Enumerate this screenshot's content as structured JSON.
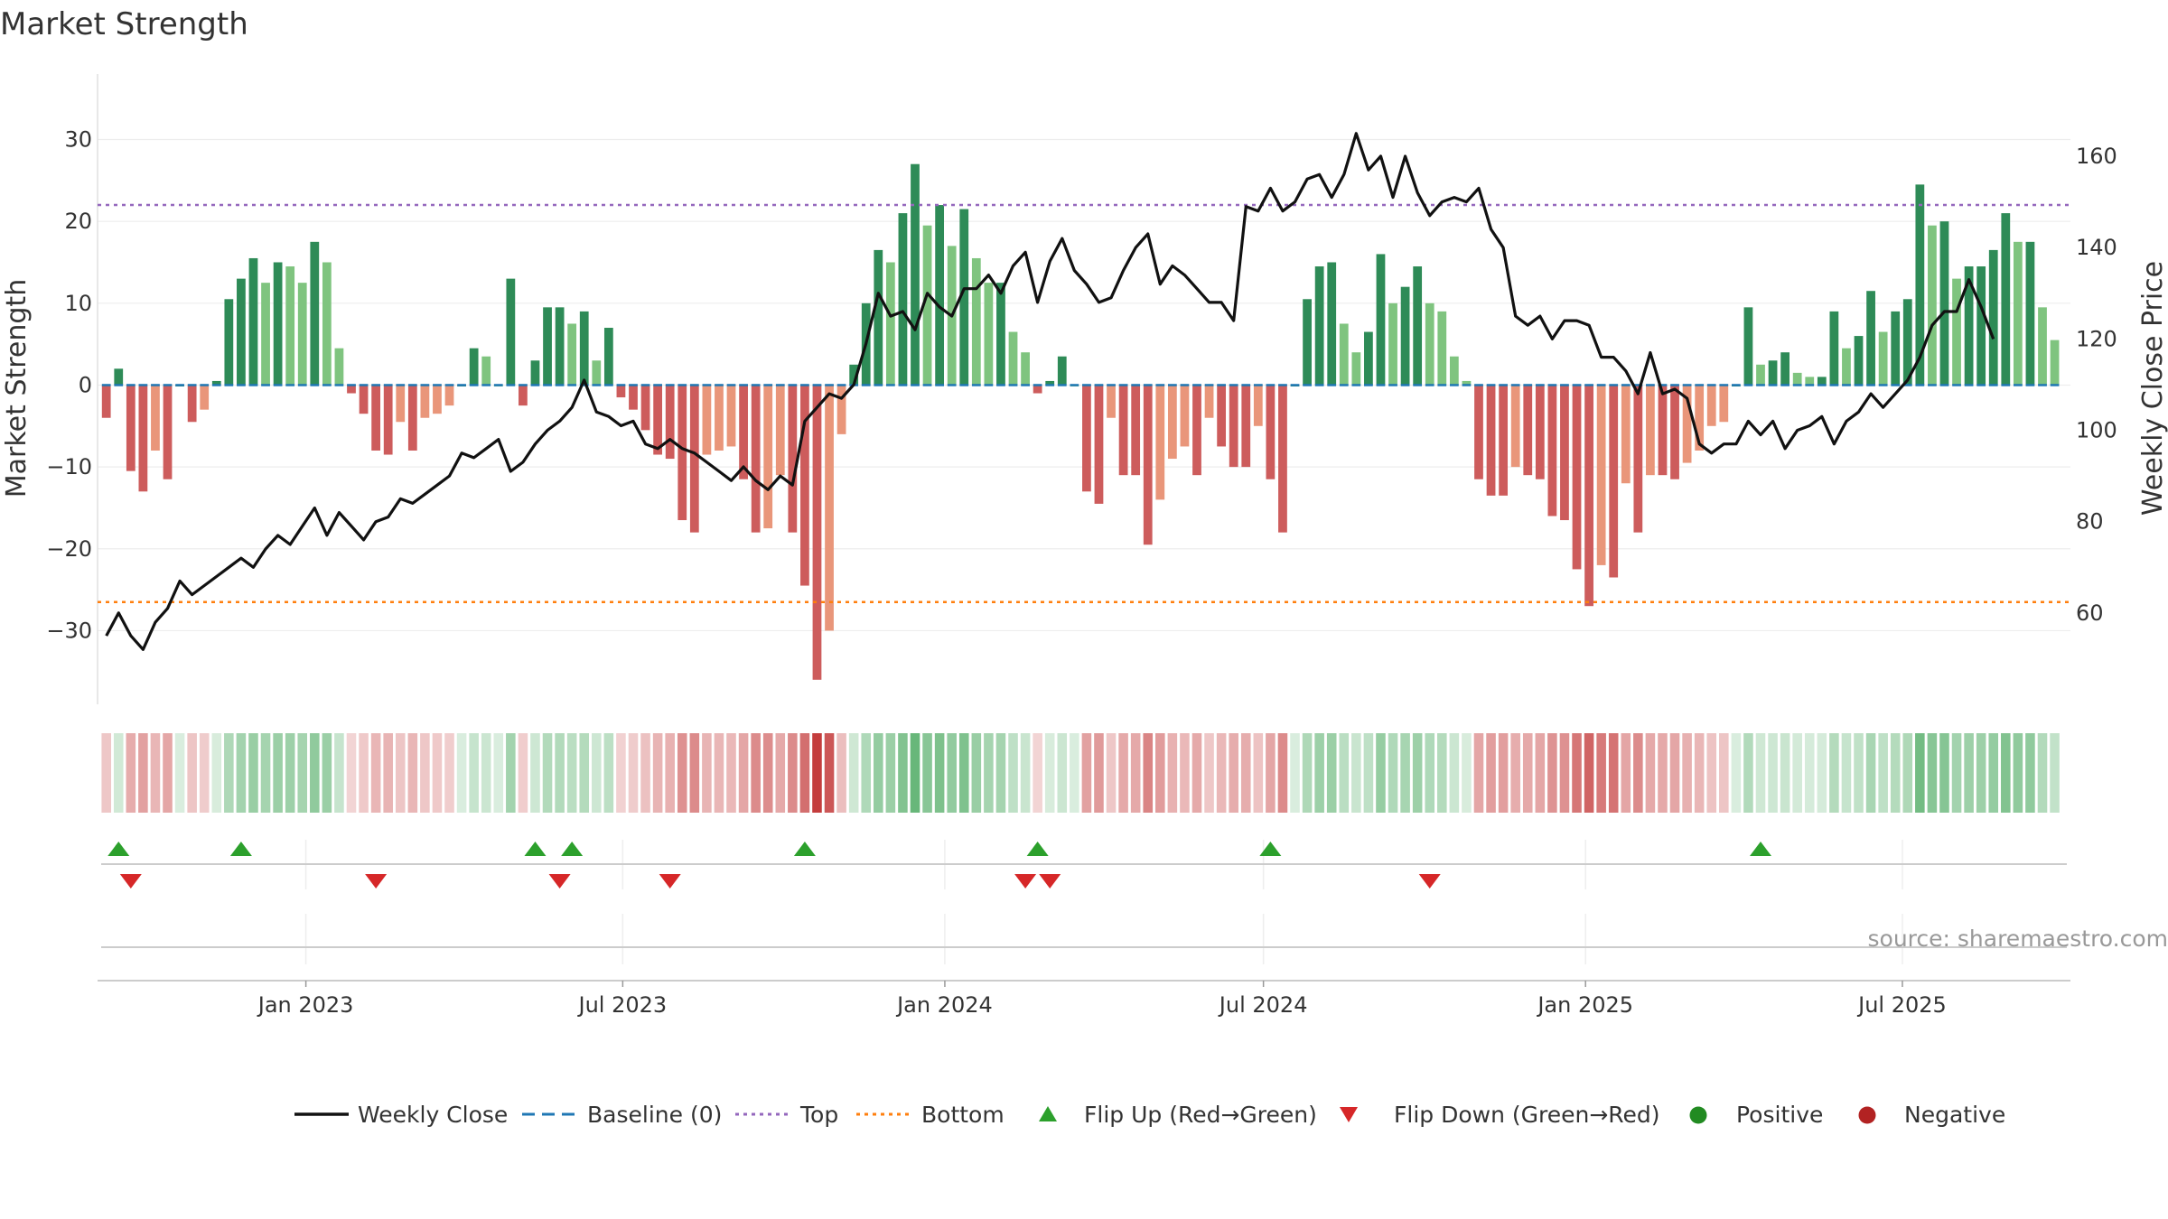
{
  "title": "Market Strength",
  "source": "source: sharemaestro.com",
  "colors": {
    "strong_pos": "#2e8b57",
    "weak_pos": "#7fc47f",
    "strong_neg": "#cd5c5c",
    "weak_neg": "#e9967a",
    "baseline": "#1f77b4",
    "top": "#9467bd",
    "bottom": "#ff7f0e",
    "flip_up": "#2ca02c",
    "flip_down": "#d62728",
    "positive": "#228b22",
    "negative": "#b22222",
    "price": "#111111"
  },
  "chart_data": {
    "type": "bar+line",
    "title": "Market Strength",
    "ylabel": "Market Strength",
    "y2label": "Weekly Close Price",
    "ylim": [
      -39,
      38
    ],
    "y2lim": [
      40,
      178
    ],
    "yticks": [
      30,
      20,
      10,
      0,
      -10,
      -20,
      -30
    ],
    "ytick_labels": [
      "30",
      "20",
      "10",
      "0",
      "−10",
      "−20",
      "−30"
    ],
    "y2ticks": [
      160,
      140,
      120,
      100,
      80,
      60
    ],
    "y2tick_labels": [
      "160",
      "140",
      "120",
      "100",
      "80",
      "60"
    ],
    "x_start": "2022-09-09",
    "x_range": [
      "2022-09-04",
      "2025-10-05"
    ],
    "xtick_dates": [
      "2023-01-01",
      "2023-07-01",
      "2024-01-01",
      "2024-07-01",
      "2025-01-01",
      "2025-07-01"
    ],
    "xtick_labels": [
      "Jan 2023",
      "Jul 2023",
      "Jan 2024",
      "Jul 2024",
      "Jan 2025",
      "Jul 2025"
    ],
    "top_threshold": 22,
    "bottom_threshold": -26.5,
    "strength": [
      -4,
      2,
      -10.5,
      -13,
      -8,
      -11.5,
      0,
      -4.5,
      -3,
      0.5,
      10.5,
      13,
      15.5,
      12.5,
      15,
      14.5,
      12.5,
      17.5,
      15,
      4.5,
      -1,
      -3.5,
      -8,
      -8.5,
      -4.5,
      -8,
      -4,
      -3.5,
      -2.5,
      0,
      4.5,
      3.5,
      0,
      13,
      -2.5,
      3,
      9.5,
      9.5,
      7.5,
      9,
      3,
      7,
      -1.5,
      -3,
      -5.5,
      -8.5,
      -9,
      -16.5,
      -18,
      -8.5,
      -8,
      -7.5,
      -11.5,
      -18,
      -17.5,
      -11,
      -18,
      -24.5,
      -36,
      -30,
      -6,
      2.5,
      10,
      16.5,
      15,
      21,
      27,
      19.5,
      22,
      17,
      21.5,
      15.5,
      12.5,
      12.5,
      6.5,
      4,
      -1,
      0.5,
      3.5,
      0,
      -13,
      -14.5,
      -4,
      -11,
      -11,
      -19.5,
      -14,
      -9,
      -7.5,
      -11,
      -4,
      -7.5,
      -10,
      -10,
      -5,
      -11.5,
      -18,
      0,
      10.5,
      14.5,
      15,
      7.5,
      4,
      6.5,
      16,
      10,
      12,
      14.5,
      10,
      9,
      3.5,
      0.5,
      -11.5,
      -13.5,
      -13.5,
      -10,
      -11,
      -11.5,
      -16,
      -16.5,
      -22.5,
      -27,
      -22,
      -23.5,
      -12,
      -18,
      -11,
      -11,
      -11.5,
      -9.5,
      -8,
      -5,
      -4.5,
      0,
      9.5,
      2.5,
      3,
      4,
      1.5,
      1,
      1,
      9,
      4.5,
      6,
      11.5,
      6.5,
      9,
      10.5,
      24.5,
      19.5,
      20,
      13,
      14.5,
      14.5,
      16.5,
      21,
      17.5,
      17.5,
      9.5,
      5.5
    ],
    "price": [
      55,
      60,
      55,
      52,
      58,
      61,
      67,
      64,
      66,
      68,
      70,
      72,
      70,
      74,
      77,
      75,
      79,
      83,
      77,
      82,
      79,
      76,
      80,
      81,
      85,
      84,
      86,
      88,
      90,
      95,
      94,
      96,
      98,
      91,
      93,
      97,
      100,
      102,
      105,
      111,
      104,
      103,
      101,
      102,
      97,
      96,
      98,
      96,
      95,
      93,
      91,
      89,
      92,
      89,
      87,
      90,
      88,
      102,
      105,
      108,
      107,
      110,
      119,
      130,
      125,
      126,
      122,
      130,
      127,
      125,
      131,
      131,
      134,
      130,
      136,
      139,
      128,
      137,
      142,
      135,
      132,
      128,
      129,
      135,
      140,
      143,
      132,
      136,
      134,
      131,
      128,
      128,
      124,
      149,
      148,
      153,
      148,
      150,
      155,
      156,
      151,
      156,
      165,
      157,
      160,
      151,
      160,
      152,
      147,
      150,
      151,
      150,
      153,
      144,
      140,
      125,
      123,
      125,
      120,
      124,
      124,
      123,
      116,
      116,
      113,
      108,
      117,
      108,
      109,
      107,
      97,
      95,
      97,
      97,
      102,
      99,
      102,
      96,
      100,
      101,
      103,
      97,
      102,
      104,
      108,
      105,
      108,
      111,
      116,
      123,
      126,
      126,
      133,
      127,
      120
    ]
  },
  "flip_up_dates": [
    "2022-09-16",
    "2022-11-25",
    "2023-05-12",
    "2023-06-02",
    "2023-10-13",
    "2024-02-23",
    "2024-07-05",
    "2025-04-11"
  ],
  "flip_down_dates": [
    "2022-09-23",
    "2023-02-10",
    "2023-05-26",
    "2023-07-28",
    "2024-02-16",
    "2024-03-01",
    "2024-10-04"
  ],
  "legend": {
    "weekly_close": "Weekly Close",
    "baseline": "Baseline (0)",
    "top": "Top",
    "bottom": "Bottom",
    "flip_up": "Flip Up (Red→Green)",
    "flip_down": "Flip Down (Green→Red)",
    "positive": "Positive",
    "negative": "Negative"
  }
}
